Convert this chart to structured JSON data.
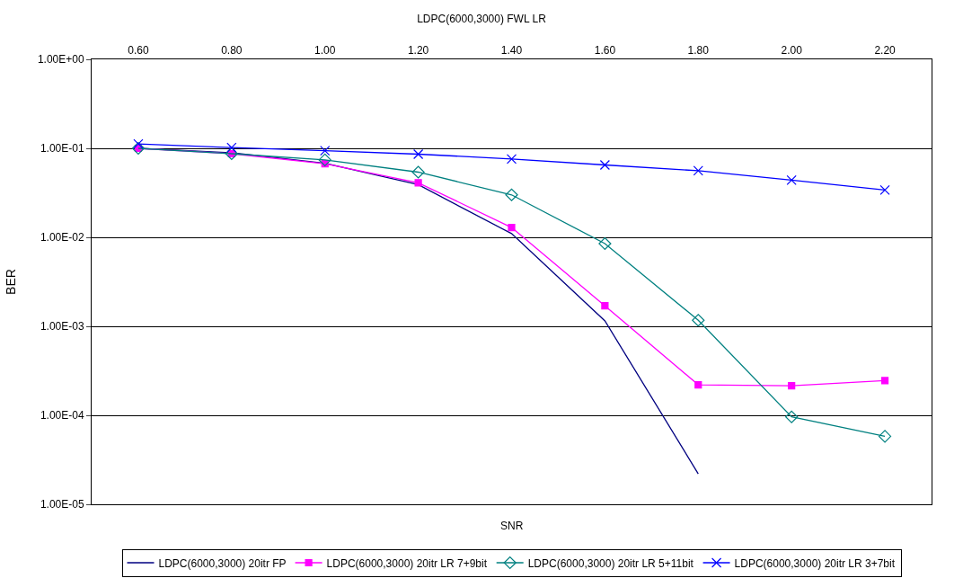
{
  "chart_data": {
    "type": "line",
    "title": "LDPC(6000,3000) FWL LR",
    "xlabel": "SNR",
    "ylabel": "BER",
    "categories": [
      "0.60",
      "0.80",
      "1.00",
      "1.20",
      "1.40",
      "1.60",
      "1.80",
      "2.00",
      "2.20"
    ],
    "log": "y",
    "ylim": [
      1e-05,
      1.0
    ],
    "yticks": [
      {
        "value": 1e-05,
        "label": "1.00E-05"
      },
      {
        "value": 0.0001,
        "label": "1.00E-04"
      },
      {
        "value": 0.001,
        "label": "1.00E-03"
      },
      {
        "value": 0.01,
        "label": "1.00E-02"
      },
      {
        "value": 0.1,
        "label": "1.00E-01"
      },
      {
        "value": 1.0,
        "label": "1.00E+00"
      }
    ],
    "grid": "y",
    "legend": "bottom",
    "series": [
      {
        "name": "LDPC(6000,3000) 20itr FP",
        "color": "#000080",
        "marker": "none",
        "values": [
          0.1,
          0.089,
          0.068,
          0.039,
          0.011,
          0.00115,
          2.2e-05,
          null,
          null
        ]
      },
      {
        "name": "LDPC(6000,3000) 20itr LR 7+9bit",
        "color": "#ff00ff",
        "marker": "square",
        "values": [
          0.1,
          0.087,
          0.067,
          0.041,
          0.0129,
          0.0017,
          0.00022,
          0.000215,
          0.000245
        ]
      },
      {
        "name": "LDPC(6000,3000) 20itr LR 5+11bit",
        "color": "#008080",
        "marker": "diamond",
        "values": [
          0.1,
          0.087,
          0.074,
          0.054,
          0.03,
          0.0085,
          0.00117,
          9.6e-05,
          5.8e-05
        ]
      },
      {
        "name": "LDPC(6000,3000) 20itr LR 3+7bit",
        "color": "#0000ff",
        "marker": "cross",
        "values": [
          0.112,
          0.102,
          0.094,
          0.086,
          0.076,
          0.065,
          0.056,
          0.044,
          0.034
        ]
      }
    ]
  }
}
